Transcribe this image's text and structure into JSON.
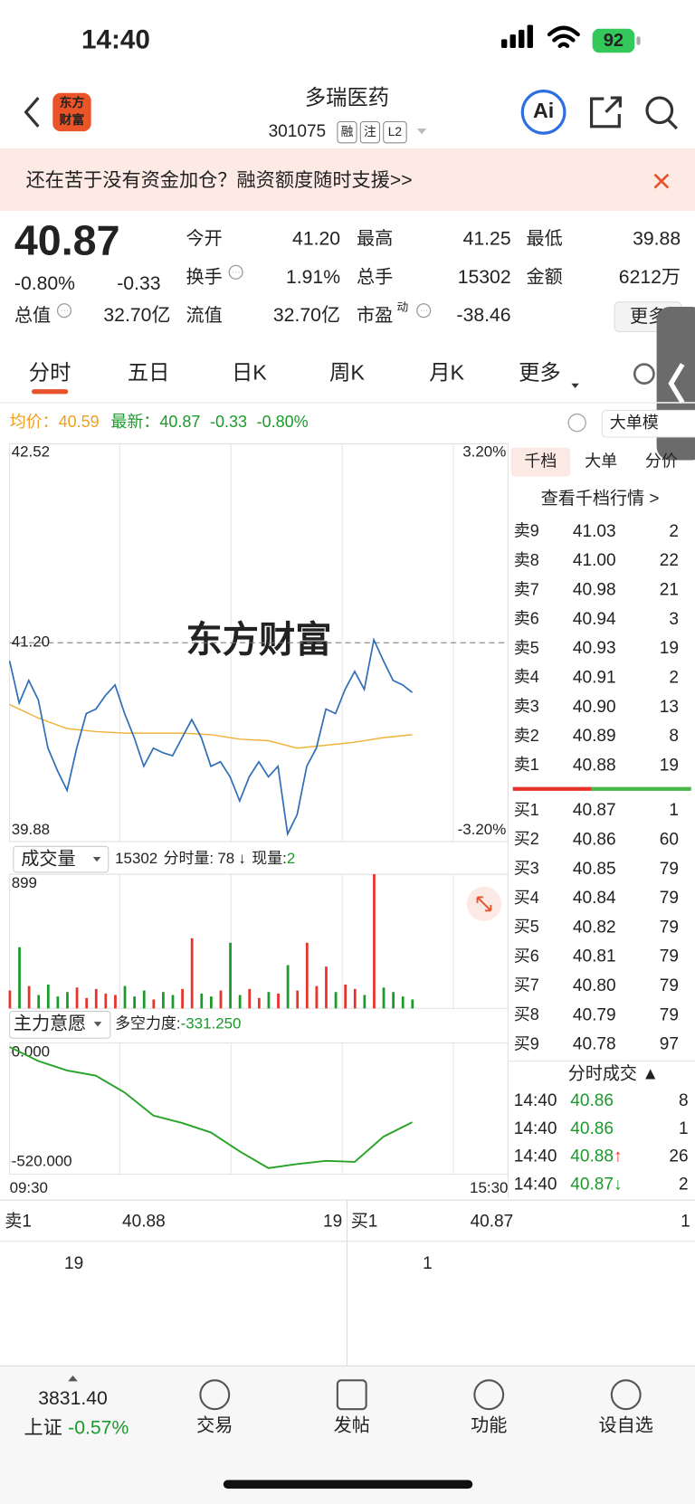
{
  "status_bar": {
    "time": "14:40",
    "battery": "92"
  },
  "header": {
    "logo": [
      "东方",
      "财富"
    ],
    "title": "多瑞医药",
    "code": "301075",
    "tags": [
      "融",
      "注",
      "L2"
    ],
    "ai": "Ai"
  },
  "banner": {
    "text": "还在苦于没有资金加仓？融资额度随时支援>>"
  },
  "quote": {
    "price": "40.87",
    "change_pct": "-0.80%",
    "change": "-0.33",
    "more": "更多",
    "fields": [
      {
        "label": "今开",
        "value": "41.20",
        "color": "#222222"
      },
      {
        "label": "最高",
        "value": "41.25",
        "color": "#e8322b"
      },
      {
        "label": "最低",
        "value": "39.88",
        "color": "#1a9a2a"
      },
      {
        "label": "换手",
        "value": "1.91%",
        "color": "#222222",
        "info": true
      },
      {
        "label": "总手",
        "value": "15302",
        "color": "#222222"
      },
      {
        "label": "金额",
        "value": "6212万",
        "color": "#222222"
      },
      {
        "label": "总值",
        "value": "32.70亿",
        "color": "#222222",
        "info": true
      },
      {
        "label": "流值",
        "value": "32.70亿",
        "color": "#222222"
      },
      {
        "label": "市盈",
        "sup": "动",
        "value": "-38.46",
        "color": "#222222",
        "info": true
      }
    ]
  },
  "tabs": {
    "items": [
      "分时",
      "五日",
      "日K",
      "周K",
      "月K",
      "更多"
    ],
    "active": 0
  },
  "info_line": {
    "avg_label": "均价：",
    "avg": "40.59",
    "latest_label": "最新：",
    "latest": "40.87",
    "change": "-0.33",
    "pct": "-0.80%",
    "mode": "大单模"
  },
  "price_chart": {
    "type": "line",
    "watermark": "东方财富",
    "ylim": [
      39.88,
      42.52
    ],
    "yticks": [
      42.52,
      {
        "value": 41.2,
        "label": "41.20"
      },
      39.88
    ],
    "y2lim": [
      -3.2,
      3.2
    ],
    "y2ticks": [
      {
        "value": 3.2,
        "label": "3.20%"
      },
      {
        "value": -3.2,
        "label": "-3.20%"
      }
    ],
    "series": [
      {
        "color": "#2f6db5",
        "values": [
          41.08,
          40.8,
          40.95,
          40.82,
          40.5,
          40.35,
          40.22,
          40.5,
          40.73,
          40.76,
          40.85,
          40.92,
          40.73,
          40.57,
          40.38,
          40.5,
          40.47,
          40.45,
          40.57,
          40.69,
          40.57,
          40.38,
          40.41,
          40.31,
          40.15,
          40.31,
          40.41,
          40.31,
          40.38,
          39.93,
          40.06,
          40.38,
          40.5,
          40.76,
          40.73,
          40.89,
          41.01,
          40.89,
          41.22,
          41.08,
          40.95,
          40.92,
          40.87
        ]
      },
      {
        "color": "#f0b33c",
        "values": [
          40.79,
          40.7,
          40.63,
          40.61,
          40.6,
          40.6,
          40.6,
          40.59,
          40.56,
          40.55,
          40.5,
          40.52,
          40.54,
          40.57,
          40.59
        ]
      }
    ]
  },
  "volume_chart": {
    "type": "bar",
    "selector": "成交量",
    "total": "15302",
    "minute_label": "分时量:",
    "minute_volume": "78",
    "arrow": "↓",
    "current_label": "现量:",
    "current": "2",
    "ylim": [
      0,
      899
    ],
    "yticks": [
      899
    ],
    "up_color": "#e8322b",
    "down_color": "#1a9a2a",
    "values": [
      120,
      410,
      150,
      90,
      160,
      80,
      110,
      140,
      70,
      130,
      100,
      90,
      150,
      80,
      120,
      60,
      110,
      90,
      130,
      470,
      100,
      80,
      120,
      440,
      90,
      130,
      70,
      110,
      100,
      290,
      120,
      440,
      150,
      280,
      110,
      160,
      130,
      90,
      899,
      140,
      110,
      80,
      60
    ]
  },
  "force_chart": {
    "type": "line",
    "selector": "主力意愿",
    "label": "多空力度:",
    "value_label": "-331.250",
    "ylim": [
      -579,
      46
    ],
    "yticks": [
      {
        "value": 0,
        "label": "0.000"
      },
      {
        "value": -520,
        "label": "-520.000"
      }
    ],
    "color": "#27a327",
    "values": [
      27,
      -40,
      -85,
      -110,
      -190,
      -300,
      -335,
      -380,
      -470,
      -550,
      -530,
      -515,
      -520,
      -400,
      -331.25
    ]
  },
  "time_axis": [
    "09:30",
    "15:30"
  ],
  "order_book": {
    "tabs": [
      "千档",
      "大单",
      "分价"
    ],
    "active": 0,
    "link": "查看千档行情 >",
    "asks": [
      {
        "label": "卖9",
        "price": "41.03",
        "volume": "2"
      },
      {
        "label": "卖8",
        "price": "41.00",
        "volume": "22"
      },
      {
        "label": "卖7",
        "price": "40.98",
        "volume": "21"
      },
      {
        "label": "卖6",
        "price": "40.94",
        "volume": "3"
      },
      {
        "label": "卖5",
        "price": "40.93",
        "volume": "19"
      },
      {
        "label": "卖4",
        "price": "40.91",
        "volume": "2"
      },
      {
        "label": "卖3",
        "price": "40.90",
        "volume": "13"
      },
      {
        "label": "卖2",
        "price": "40.89",
        "volume": "8"
      },
      {
        "label": "卖1",
        "price": "40.88",
        "volume": "19"
      }
    ],
    "bids": [
      {
        "label": "买1",
        "price": "40.87",
        "volume": "1"
      },
      {
        "label": "买2",
        "price": "40.86",
        "volume": "60"
      },
      {
        "label": "买3",
        "price": "40.85",
        "volume": "79"
      },
      {
        "label": "买4",
        "price": "40.84",
        "volume": "79"
      },
      {
        "label": "买5",
        "price": "40.82",
        "volume": "79"
      },
      {
        "label": "买6",
        "price": "40.81",
        "volume": "79"
      },
      {
        "label": "买7",
        "price": "40.80",
        "volume": "79"
      },
      {
        "label": "买8",
        "price": "40.79",
        "volume": "79"
      },
      {
        "label": "买9",
        "price": "40.78",
        "volume": "97"
      }
    ]
  },
  "trades": {
    "title": "分时成交 ▲",
    "rows": [
      {
        "time": "14:40",
        "price": "40.86",
        "volume": "8",
        "color": "#1a9a2a"
      },
      {
        "time": "14:40",
        "price": "40.86",
        "volume": "1",
        "color": "#1a9a2a"
      },
      {
        "time": "14:40",
        "price": "40.88",
        "arrow": "↑",
        "volume": "26",
        "color": "#e8322b"
      },
      {
        "time": "14:40",
        "price": "40.87",
        "arrow": "↓",
        "volume": "2",
        "color": "#1a9a2a"
      }
    ]
  },
  "bottom_quote": {
    "ask_label": "卖1",
    "ask_price": "40.88",
    "ask_volume": "19",
    "bid_label": "买1",
    "bid_price": "40.87",
    "bid_volume": "1",
    "ask_queue": [
      "19"
    ],
    "bid_queue": [
      "1"
    ]
  },
  "nav": {
    "index_value": "3831.40",
    "index_name": "上证",
    "index_change": "-0.57%",
    "items": [
      "交易",
      "发帖",
      "功能",
      "设自选"
    ]
  }
}
